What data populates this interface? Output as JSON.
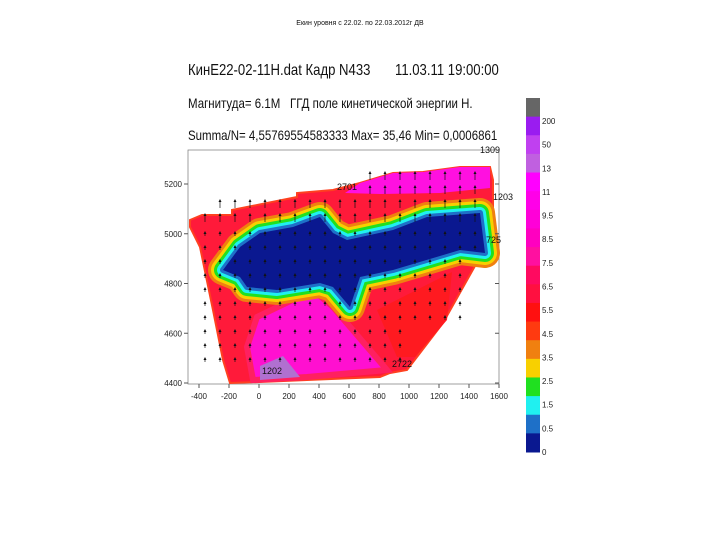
{
  "slide_caption": "Екин уровня с 22.02. по 22.03.2012г ДВ",
  "header": {
    "file_frame": "КинЕ22-02-11Н.dat Кадр N433",
    "datetime": "11.03.11 19:00:00",
    "magnitude": "Магнитуда= 6.1М",
    "field": "ГГД поле кинетической энергии Н.",
    "summary": "Summa/N= 4,55769554583333 Max= 35,46 Min= 0,0006861"
  },
  "chart_data": {
    "type": "heatmap",
    "title": "КинЕ22-02-11Н.dat Кадр N433",
    "xlim": [
      -450,
      1650
    ],
    "ylim": [
      4400,
      5200
    ],
    "x_ticks": [
      "-400",
      "-200",
      "0",
      "200",
      "400",
      "600",
      "800",
      "1000",
      "1200",
      "1400",
      "1600"
    ],
    "y_ticks": [
      "5200",
      "5000",
      "4800",
      "4600",
      "4400"
    ],
    "stations": [
      "1309",
      "2701",
      "1203",
      "725",
      "2722",
      "1202"
    ],
    "colorbar": {
      "levels": [
        "200",
        "50",
        "13",
        "11",
        "9.5",
        "8.5",
        "7.5",
        "6.5",
        "5.5",
        "4.5",
        "3.5",
        "2.5",
        "1.5",
        "0.5",
        "0"
      ],
      "colors": [
        "#666666",
        "#9a1cf0",
        "#c040f0",
        "#c060e0",
        "#ff00ff",
        "#ff00e8",
        "#ff00d8",
        "#ff00c0",
        "#ff10a0",
        "#ff0a60",
        "#ff1040",
        "#ff1010",
        "#ff3a10",
        "#f08010",
        "#f8d000",
        "#20e020",
        "#20f0f0",
        "#1e70c8",
        "#0a1890"
      ]
    },
    "legend": "right"
  }
}
